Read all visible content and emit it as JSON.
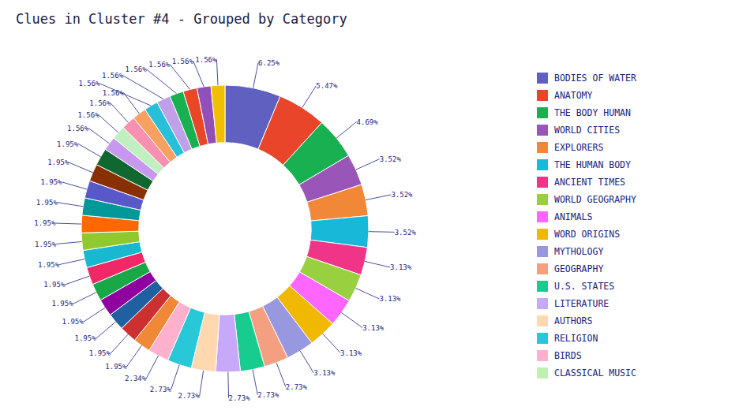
{
  "chart_data": {
    "type": "donut",
    "title": "Clues in Cluster #4 - Grouped by Category",
    "values": [
      6.25,
      5.47,
      4.69,
      3.52,
      3.52,
      3.52,
      3.13,
      3.13,
      3.13,
      3.13,
      3.13,
      2.73,
      2.73,
      2.73,
      2.73,
      2.73,
      2.34,
      1.95,
      1.95,
      1.95,
      1.95,
      1.95,
      1.95,
      1.95,
      1.95,
      1.95,
      1.95,
      1.95,
      1.95,
      1.95,
      1.56,
      1.56,
      1.56,
      1.56,
      1.56,
      1.56,
      1.56,
      1.56,
      1.56,
      1.56
    ],
    "value_labels": [
      "6.25%",
      "5.47%",
      "4.69%",
      "3.52%",
      "3.52%",
      "3.52%",
      "3.13%",
      "3.13%",
      "3.13%",
      "3.13%",
      "3.13%",
      "2.73%",
      "2.73%",
      "2.73%",
      "2.73%",
      "2.73%",
      "2.34%",
      "1.95%",
      "1.95%",
      "1.95%",
      "1.95%",
      "1.95%",
      "1.95%",
      "1.95%",
      "1.95%",
      "1.95%",
      "1.95%",
      "1.95%",
      "1.95%",
      "1.95%",
      "1.56%",
      "1.56%",
      "1.56%",
      "1.56%",
      "1.56%",
      "1.56%",
      "1.56%",
      "1.56%",
      "1.56%",
      "1.56%"
    ],
    "colors": [
      "#6060c0",
      "#e8452a",
      "#18b050",
      "#9955b8",
      "#f08838",
      "#18b8d8",
      "#f03488",
      "#98d040",
      "#ff66ff",
      "#f0b800",
      "#9898e0",
      "#f4a080",
      "#18cc90",
      "#c8a8f8",
      "#ffd8b0",
      "#28c8d8",
      "#ffb0cc",
      "#f08838",
      "#cc3030",
      "#2060a0",
      "#9000a0",
      "#18a848",
      "#f02868",
      "#18b8d0",
      "#90c830",
      "#ff6800",
      "#009898",
      "#5858c8",
      "#883000",
      "#106830",
      "#c898f0",
      "#c0f0c0",
      "#f890b0",
      "#f8a060",
      "#28c0d8",
      "#c0a0e8",
      "#18b050",
      "#e84828",
      "#9050b8",
      "#f0c000"
    ],
    "data_labels": true,
    "legend": "right",
    "legend_entries": [
      {
        "label": "BODIES OF WATER",
        "color": "#6060c0"
      },
      {
        "label": "ANATOMY",
        "color": "#e8452a"
      },
      {
        "label": "THE BODY HUMAN",
        "color": "#18b050"
      },
      {
        "label": "WORLD CITIES",
        "color": "#9955b8"
      },
      {
        "label": "EXPLORERS",
        "color": "#f08838"
      },
      {
        "label": "THE HUMAN BODY",
        "color": "#18b8d8"
      },
      {
        "label": "ANCIENT TIMES",
        "color": "#f03488"
      },
      {
        "label": "WORLD GEOGRAPHY",
        "color": "#98d040"
      },
      {
        "label": "ANIMALS",
        "color": "#ff66ff"
      },
      {
        "label": "WORD ORIGINS",
        "color": "#f0b800"
      },
      {
        "label": "MYTHOLOGY",
        "color": "#9898e0"
      },
      {
        "label": "GEOGRAPHY",
        "color": "#f4a080"
      },
      {
        "label": "U.S. STATES",
        "color": "#18cc90"
      },
      {
        "label": "LITERATURE",
        "color": "#c8a8f8"
      },
      {
        "label": "AUTHORS",
        "color": "#ffd8b0"
      },
      {
        "label": "RELIGION",
        "color": "#28c8d8"
      },
      {
        "label": "BIRDS",
        "color": "#ffb0cc"
      },
      {
        "label": "CLASSICAL MUSIC",
        "color": "#c0f0b0"
      }
    ]
  }
}
